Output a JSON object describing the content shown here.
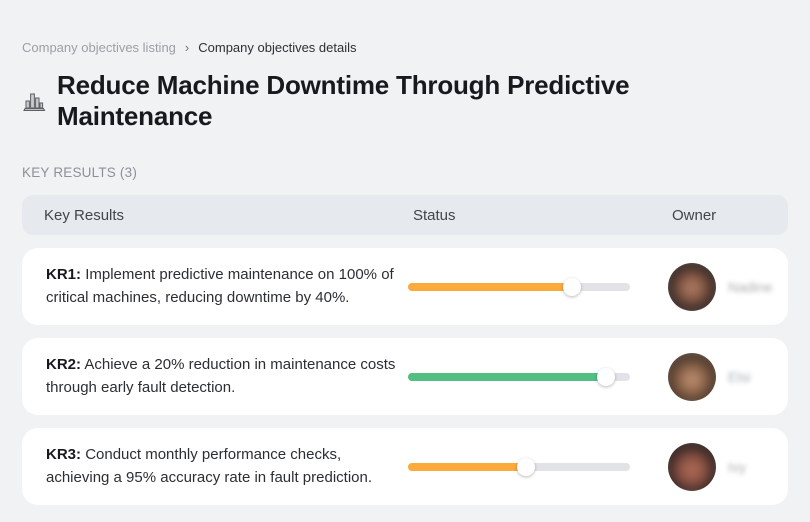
{
  "breadcrumb": {
    "prev": "Company objectives listing",
    "separator": "›",
    "current": "Company objectives details"
  },
  "header": {
    "icon": "bar-chart-icon",
    "title": "Reduce Machine Downtime Through Predictive Maintenance"
  },
  "section": {
    "label": "KEY RESULTS (3)"
  },
  "table": {
    "columns": {
      "key_results": "Key Results",
      "status": "Status",
      "owner": "Owner"
    },
    "rows": [
      {
        "kr_label": "KR1:",
        "description": "Implement predictive maintenance on 100% of critical machines, reducing downtime by 40%.",
        "progress_percent": 74,
        "progress_color": "#FAAB3C",
        "owner": {
          "name": "Nadine",
          "avatar_gradient": "radial-gradient(circle at 50% 52%, #b9876e 0%, #8a5a46 26%, #40302b 48%, #2b211f 62%, #e9e6e3 78%)"
        }
      },
      {
        "kr_label": "KR2:",
        "description": "Achieve a 20% reduction in maintenance costs through early fault detection.",
        "progress_percent": 89,
        "progress_color": "#53BF82",
        "owner": {
          "name": "Elsi",
          "avatar_gradient": "radial-gradient(circle at 50% 55%, #c49a7d 0%, #996c50 25%, #5d4433 45%, #3e2f26 60%, #ded8d2 80%)"
        }
      },
      {
        "kr_label": "KR3:",
        "description": "Conduct monthly performance checks, achieving a 95% accuracy rate in fault prediction.",
        "progress_percent": 53,
        "progress_color": "#FAAB3C",
        "owner": {
          "name": "Ivy",
          "avatar_gradient": "radial-gradient(circle at 50% 55%, #b4705c 0%, #8e5243 28%, #3a2a28 50%, #2a2020 64%, #c9c4c0 82%)"
        }
      }
    ]
  }
}
